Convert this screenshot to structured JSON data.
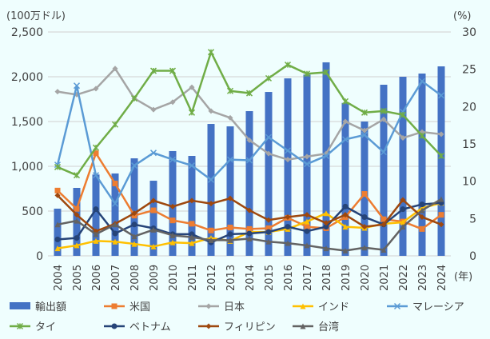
{
  "chart_data": {
    "type": "bar+line",
    "categories": [
      "2004",
      "2005",
      "2006",
      "2007",
      "2008",
      "2009",
      "2010",
      "2011",
      "2012",
      "2013",
      "2014",
      "2015",
      "2016",
      "2017",
      "2018",
      "2019",
      "2020",
      "2021",
      "2022",
      "2023",
      "2024"
    ],
    "left_axis": {
      "label": "(100万ドル)",
      "range": [
        0,
        2500
      ],
      "ticks": [
        "0",
        "500",
        "1,000",
        "1,500",
        "2,000",
        "2,500"
      ]
    },
    "right_axis": {
      "label": "(%)",
      "range": [
        0,
        30
      ],
      "ticks": [
        "0",
        "5",
        "10",
        "15",
        "20",
        "25",
        "30"
      ]
    },
    "xlabel": "(年)",
    "grid": true,
    "legend_position": "bottom",
    "bar_series": {
      "name": "輸出額",
      "color": "#4472C4",
      "axis": "left",
      "values": [
        527,
        759,
        908,
        920,
        1089,
        839,
        1170,
        1116,
        1473,
        1446,
        1616,
        1830,
        1982,
        2024,
        2161,
        1708,
        1500,
        1911,
        2000,
        2036,
        2116
      ]
    },
    "series": [
      {
        "name": "米国",
        "color": "#ED7D31",
        "marker": "square",
        "values": [
          8.75,
          6.3,
          13.75,
          9.7,
          5.4,
          6.1,
          4.75,
          4.3,
          3.4,
          3.8,
          3.6,
          3.7,
          5.1,
          3.9,
          3.7,
          5.2,
          8.3,
          4.9,
          4.6,
          3.6,
          5.5
        ]
      },
      {
        "name": "日本",
        "color": "#A5A5A5",
        "marker": "diamond",
        "values": [
          22.0,
          21.6,
          22.4,
          25.1,
          21.1,
          19.6,
          20.6,
          22.6,
          19.4,
          18.5,
          15.5,
          13.7,
          12.9,
          13.3,
          13.7,
          18.0,
          16.8,
          18.3,
          15.8,
          16.6,
          16.3
        ]
      },
      {
        "name": "インド",
        "color": "#FFC000",
        "marker": "triangle",
        "values": [
          1.0,
          1.4,
          2.0,
          1.9,
          1.6,
          1.25,
          1.8,
          1.7,
          2.4,
          2.0,
          3.2,
          3.2,
          3.6,
          4.6,
          5.7,
          3.9,
          3.75,
          4.3,
          4.5,
          6.4,
          7.1
        ]
      },
      {
        "name": "マレーシア",
        "color": "#5B9BD5",
        "marker": "x",
        "values": [
          12.2,
          22.8,
          10.8,
          7.0,
          12.1,
          13.8,
          12.9,
          12.1,
          10.2,
          12.9,
          12.8,
          15.9,
          14.1,
          12.3,
          13.4,
          15.6,
          16.2,
          13.9,
          19.3,
          23.4,
          21.5
        ]
      },
      {
        "name": "タイ",
        "color": "#70AD47",
        "marker": "star",
        "values": [
          11.9,
          10.8,
          14.5,
          17.6,
          21.1,
          24.8,
          24.8,
          19.2,
          27.3,
          22.1,
          21.8,
          23.8,
          25.6,
          24.4,
          24.6,
          20.7,
          19.2,
          19.4,
          18.9,
          16.1,
          13.4
        ]
      },
      {
        "name": "ベトナム",
        "color": "#264478",
        "marker": "circle",
        "values": [
          2.2,
          2.4,
          6.25,
          3.0,
          4.2,
          3.7,
          2.9,
          2.9,
          1.8,
          2.9,
          3.0,
          3.2,
          3.9,
          3.3,
          3.9,
          6.6,
          5.2,
          4.2,
          6.25,
          6.9,
          7.1
        ]
      },
      {
        "name": "フィリピン",
        "color": "#9E480E",
        "marker": "diamond",
        "values": [
          8.1,
          5.5,
          3.3,
          4.3,
          5.7,
          7.4,
          6.6,
          7.4,
          7.0,
          7.7,
          6.1,
          4.8,
          5.2,
          5.5,
          4.4,
          5.5,
          3.9,
          4.2,
          7.5,
          5.2,
          4.2
        ]
      },
      {
        "name": "台湾",
        "color": "#636363",
        "marker": "triangle",
        "values": [
          4.2,
          4.7,
          2.9,
          4.2,
          2.6,
          3.5,
          2.75,
          2.5,
          2.1,
          2.1,
          2.3,
          1.9,
          1.7,
          1.4,
          1.0,
          0.7,
          1.1,
          0.8,
          3.9,
          6.1,
          7.6
        ]
      }
    ]
  }
}
